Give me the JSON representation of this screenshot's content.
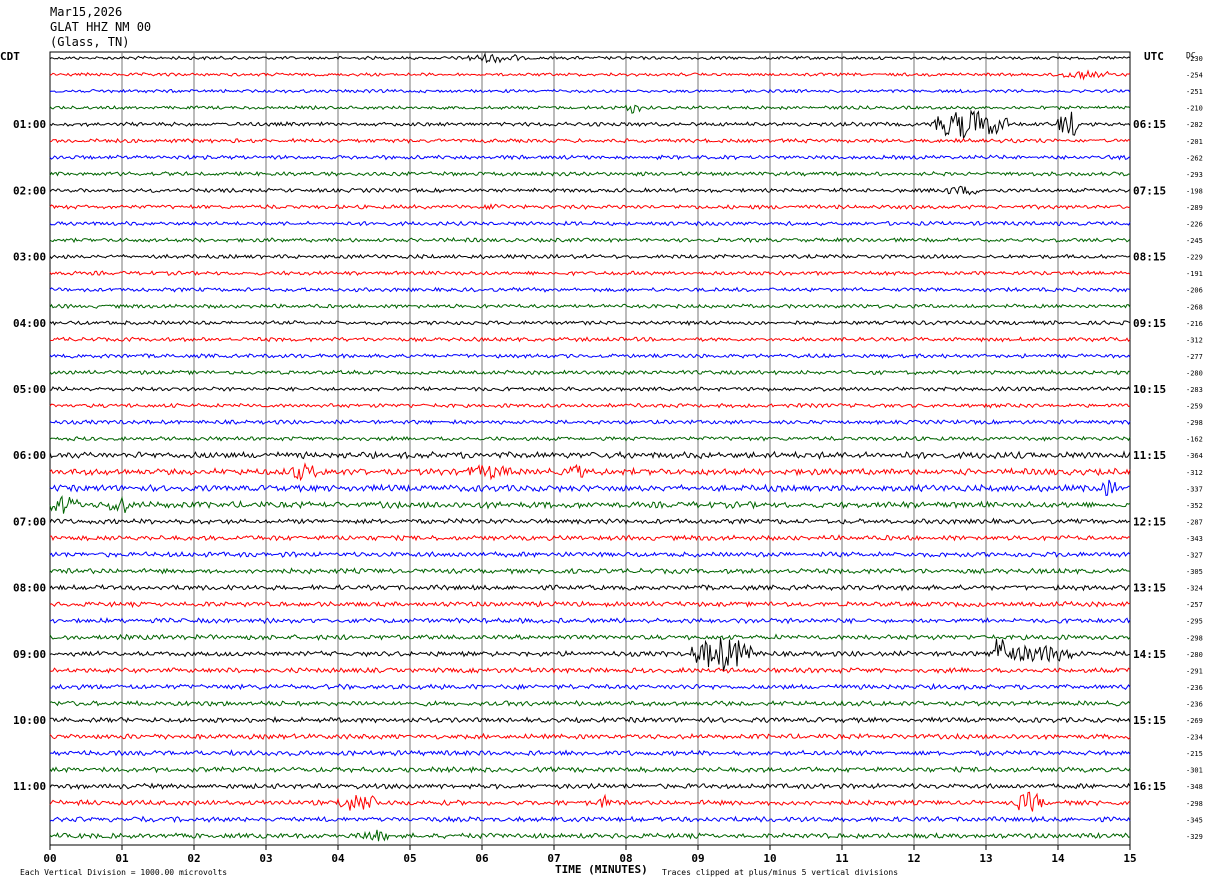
{
  "header": {
    "date": "Mar15,2026",
    "station": "GLAT HHZ NM 00",
    "location": "(Glass, TN)"
  },
  "labels": {
    "left_tz": "CDT",
    "right_tz": "UTC",
    "dc": "DC",
    "xlabel": "TIME (MINUTES)",
    "footer_left": "Each Vertical Division = 1000.00 microvolts",
    "footer_right": "Traces clipped at plus/minus 5 vertical divisions"
  },
  "chart_data": {
    "type": "line",
    "title": "GLAT HHZ NM 00",
    "xlabel": "TIME (MINUTES)",
    "xlim": [
      0,
      15
    ],
    "x_ticks": [
      "00",
      "01",
      "02",
      "03",
      "04",
      "05",
      "06",
      "07",
      "08",
      "09",
      "10",
      "11",
      "12",
      "13",
      "14",
      "15"
    ],
    "trace_colors": [
      "#000000",
      "#ff0000",
      "#0000ff",
      "#006400"
    ],
    "rows": 48,
    "left_hour_labels": [
      "01:00",
      "02:00",
      "03:00",
      "04:00",
      "05:00",
      "06:00",
      "07:00",
      "08:00",
      "09:00",
      "10:00",
      "11:00"
    ],
    "right_hour_labels": [
      "06:15",
      "07:15",
      "08:15",
      "09:15",
      "10:15",
      "11:15",
      "12:15",
      "13:15",
      "14:15",
      "15:15",
      "16:15"
    ],
    "dc_offsets": [
      "-230",
      "-254",
      "-251",
      "-210",
      "-282",
      "-201",
      "-262",
      "-293",
      "-198",
      "-289",
      "-226",
      "-245",
      "-229",
      "-191",
      "-206",
      "-268",
      "-216",
      "-312",
      "-277",
      "-280",
      "-283",
      "-259",
      "-298",
      "-162",
      "-364",
      "-312",
      "-337",
      "-352",
      "-287",
      "-343",
      "-327",
      "-305",
      "-324",
      "-257",
      "-295",
      "-298",
      "-280",
      "-291",
      "-236",
      "-236",
      "-269",
      "-234",
      "-215",
      "-301",
      "-348",
      "-298",
      "-345",
      "-329"
    ],
    "events": [
      {
        "row": 0,
        "start_min": 5.8,
        "end_min": 6.5,
        "amp": 4
      },
      {
        "row": 1,
        "start_min": 13.9,
        "end_min": 14.7,
        "amp": 3
      },
      {
        "row": 3,
        "start_min": 8.0,
        "end_min": 8.2,
        "amp": 5
      },
      {
        "row": 4,
        "start_min": 12.2,
        "end_min": 13.3,
        "amp": 14
      },
      {
        "row": 4,
        "start_min": 14.0,
        "end_min": 14.3,
        "amp": 14
      },
      {
        "row": 8,
        "start_min": 12.4,
        "end_min": 13.0,
        "amp": 3
      },
      {
        "row": 9,
        "start_min": 6.1,
        "end_min": 6.3,
        "amp": 3
      },
      {
        "row": 25,
        "start_min": 3.3,
        "end_min": 3.7,
        "amp": 6
      },
      {
        "row": 25,
        "start_min": 5.8,
        "end_min": 6.4,
        "amp": 5
      },
      {
        "row": 25,
        "start_min": 7.2,
        "end_min": 7.4,
        "amp": 6
      },
      {
        "row": 26,
        "start_min": 14.6,
        "end_min": 14.8,
        "amp": 7
      },
      {
        "row": 27,
        "start_min": 0.0,
        "end_min": 0.4,
        "amp": 8
      },
      {
        "row": 27,
        "start_min": 0.8,
        "end_min": 1.1,
        "amp": 8
      },
      {
        "row": 36,
        "start_min": 8.9,
        "end_min": 9.8,
        "amp": 16
      },
      {
        "row": 36,
        "start_min": 13.1,
        "end_min": 13.3,
        "amp": 30
      },
      {
        "row": 36,
        "start_min": 13.3,
        "end_min": 14.2,
        "amp": 8
      },
      {
        "row": 45,
        "start_min": 4.0,
        "end_min": 4.6,
        "amp": 8
      },
      {
        "row": 45,
        "start_min": 7.6,
        "end_min": 7.8,
        "amp": 5
      },
      {
        "row": 45,
        "start_min": 13.4,
        "end_min": 13.8,
        "amp": 9
      },
      {
        "row": 47,
        "start_min": 4.3,
        "end_min": 4.7,
        "amp": 5
      }
    ]
  }
}
